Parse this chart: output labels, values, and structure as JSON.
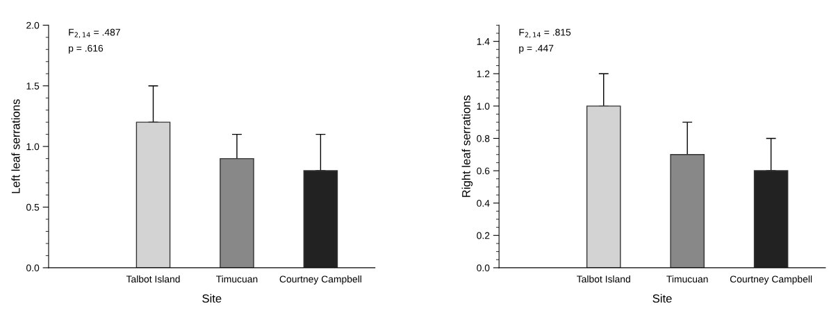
{
  "chart_data": [
    {
      "type": "bar",
      "categories": [
        "Talbot Island",
        "Timucuan",
        "Courtney Campbell"
      ],
      "values": [
        1.2,
        0.9,
        0.8
      ],
      "colors": [
        "#d3d3d3",
        "#888888",
        "#222222"
      ],
      "errors": [
        [
          1.2,
          1.5
        ],
        [
          0.9,
          1.1
        ],
        [
          0.8,
          1.1
        ]
      ],
      "xlabel": "Site",
      "ylabel": "Left leaf serrations",
      "ylim": [
        0,
        2.0
      ],
      "yticks": [
        {
          "value": 0,
          "label": "0.0"
        },
        {
          "value": 0.5,
          "label": "0.5"
        },
        {
          "value": 1.0,
          "label": "1.0"
        },
        {
          "value": 1.5,
          "label": "1.5"
        },
        {
          "value": 2.0,
          "label": "2.0"
        }
      ],
      "grid": false,
      "annotations": [
        "F$_{2,14}$ = .487",
        "p = .616"
      ]
    },
    {
      "type": "bar",
      "categories": [
        "Talbot Island",
        "Timucuan",
        "Courtney Campbell"
      ],
      "values": [
        1.0,
        0.7,
        0.6
      ],
      "colors": [
        "#d3d3d3",
        "#888888",
        "#222222"
      ],
      "errors": [
        [
          1.0,
          1.2
        ],
        [
          0.7,
          0.9
        ],
        [
          0.6,
          0.8
        ]
      ],
      "xlabel": "Site",
      "ylabel": "Right leaf serrations",
      "ylim": [
        0,
        1.5
      ],
      "yticks": [
        {
          "value": 0,
          "label": "0.0"
        },
        {
          "value": 0.2,
          "label": "0.2"
        },
        {
          "value": 0.4,
          "label": "0.4"
        },
        {
          "value": 0.6,
          "label": "0.6"
        },
        {
          "value": 0.8,
          "label": "0.8"
        },
        {
          "value": 1.0,
          "label": "1.0"
        },
        {
          "value": 1.2,
          "label": "1.2"
        },
        {
          "value": 1.4,
          "label": "1.4"
        }
      ],
      "grid": false,
      "annotations": [
        "F$_{2,14}$ = .815",
        "p = .447"
      ]
    }
  ]
}
